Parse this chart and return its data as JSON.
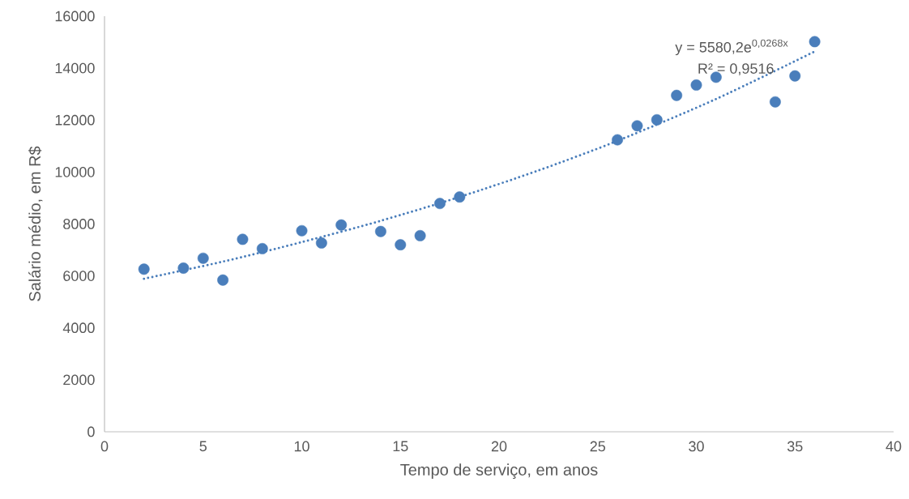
{
  "chart_data": {
    "type": "scatter",
    "xlabel": "Tempo de serviço, em anos",
    "ylabel": "Salário médio, em R$",
    "xlim": [
      0,
      40
    ],
    "ylim": [
      0,
      16000
    ],
    "xticks": [
      0,
      5,
      10,
      15,
      20,
      25,
      30,
      35,
      40
    ],
    "yticks": [
      0,
      2000,
      4000,
      6000,
      8000,
      10000,
      12000,
      14000,
      16000
    ],
    "grid": false,
    "marker": "circle",
    "series": [
      {
        "color": "#4a7ebb",
        "x": [
          2,
          4,
          5,
          6,
          7,
          8,
          10,
          11,
          12,
          14,
          15,
          16,
          17,
          18,
          26,
          27,
          28,
          29,
          30,
          31,
          34,
          35,
          36
        ],
        "values": [
          6260,
          6300,
          6680,
          5840,
          7410,
          7050,
          7740,
          7270,
          7960,
          7710,
          7200,
          7550,
          8790,
          9040,
          11240,
          11780,
          12010,
          12950,
          13350,
          13650,
          12700,
          13700,
          15020
        ]
      },
      {
        "type": "line",
        "color": "#4a7ebb",
        "marker": "none",
        "line_style": "dotted",
        "x": [
          2,
          6,
          10,
          14,
          18,
          22,
          26,
          31,
          36
        ],
        "values": [
          5890,
          6550,
          7300,
          8120,
          9040,
          10060,
          11200,
          12810,
          14640
        ]
      }
    ],
    "annotations": [
      "y = 5580,2e$^{0,0268x}$",
      "R² = 0,9516"
    ]
  }
}
